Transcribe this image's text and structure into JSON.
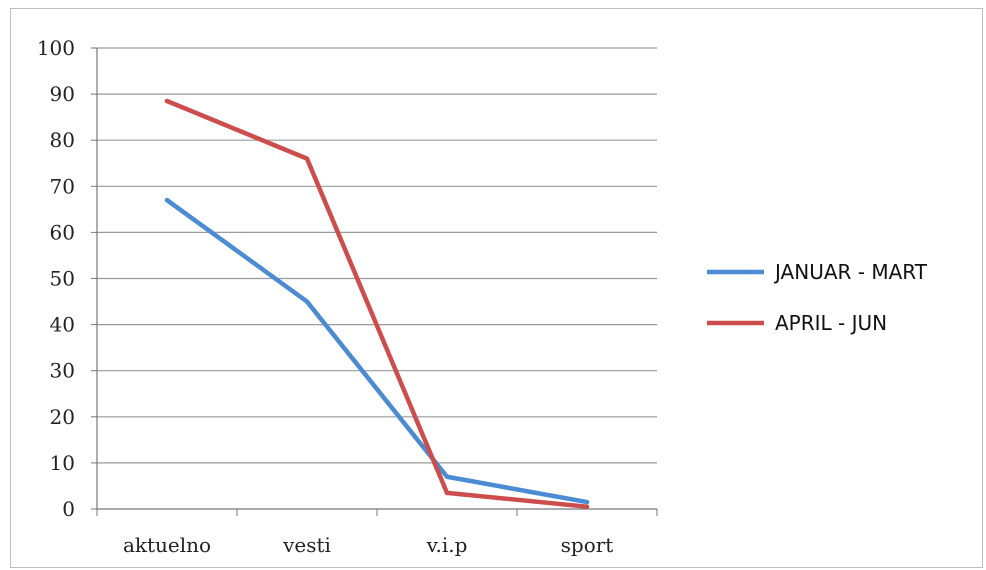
{
  "chart_data": {
    "type": "line",
    "categories": [
      "aktuelno",
      "vesti",
      "v.i.p",
      "sport"
    ],
    "series": [
      {
        "name": "JANUAR - MART",
        "values": [
          67,
          45,
          7,
          1.5
        ],
        "color": "#4a8bd4"
      },
      {
        "name": "APRIL - JUN",
        "values": [
          88.5,
          76,
          3.5,
          0.5
        ],
        "color": "#cc4d4b"
      }
    ],
    "yticks": [
      "0",
      "10",
      "20",
      "30",
      "40",
      "50",
      "60",
      "70",
      "80",
      "90",
      "100"
    ],
    "ylim": [
      0,
      100
    ],
    "grid": true,
    "legend_position": "right"
  }
}
